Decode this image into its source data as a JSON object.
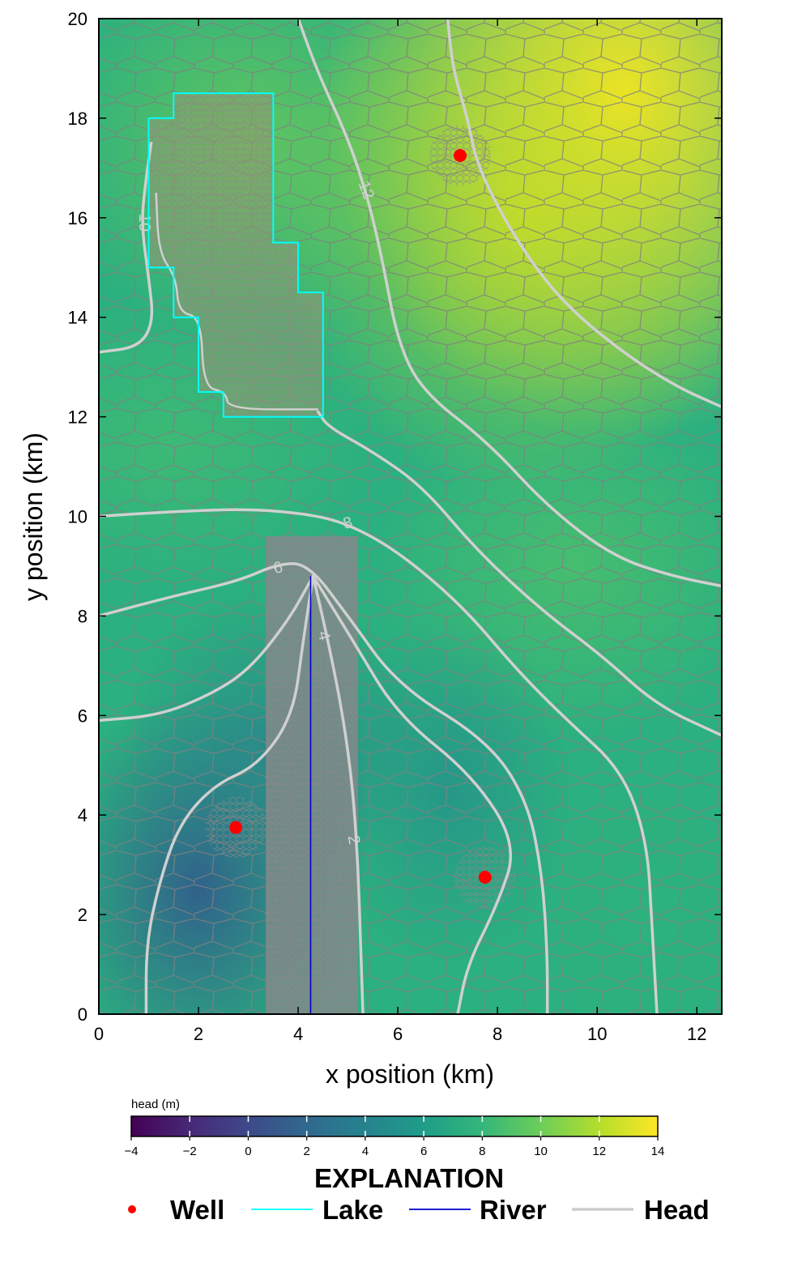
{
  "chart_data": {
    "type": "heatmap",
    "xlabel": "x position (km)",
    "ylabel": "y position (km)",
    "xlim": [
      0,
      12.5
    ],
    "ylim": [
      0,
      20
    ],
    "xticks": [
      0,
      2,
      4,
      6,
      8,
      10,
      12
    ],
    "yticks": [
      0,
      2,
      4,
      6,
      8,
      10,
      12,
      14,
      16,
      18,
      20
    ],
    "colorbar": {
      "title": "head (m)",
      "range": [
        -4,
        14
      ],
      "ticks": [
        -4,
        -2,
        0,
        2,
        4,
        6,
        8,
        10,
        12,
        14
      ],
      "tick_labels": [
        "−4",
        "−2",
        "0",
        "2",
        "4",
        "6",
        "8",
        "10",
        "12",
        "14"
      ],
      "colormap": "viridis"
    },
    "wells": [
      {
        "x": 7.25,
        "y": 17.25
      },
      {
        "x": 2.75,
        "y": 3.75
      },
      {
        "x": 7.75,
        "y": 2.75
      }
    ],
    "lake_boundary": [
      [
        1.0,
        18.0
      ],
      [
        1.5,
        18.0
      ],
      [
        1.5,
        18.5
      ],
      [
        3.5,
        18.5
      ],
      [
        3.5,
        15.5
      ],
      [
        4.0,
        15.5
      ],
      [
        4.0,
        14.5
      ],
      [
        4.5,
        14.5
      ],
      [
        4.5,
        12.0
      ],
      [
        2.5,
        12.0
      ],
      [
        2.5,
        12.5
      ],
      [
        2.0,
        12.5
      ],
      [
        2.0,
        14.0
      ],
      [
        1.5,
        14.0
      ],
      [
        1.5,
        15.0
      ],
      [
        1.0,
        15.0
      ],
      [
        1.0,
        18.0
      ]
    ],
    "river": [
      [
        4.25,
        0
      ],
      [
        4.25,
        8.8
      ]
    ],
    "contours": [
      {
        "level": "2",
        "label_pos": [
          5.1,
          3.5
        ],
        "label_angle": 80
      },
      {
        "level": "4",
        "label_pos": [
          4.5,
          7.6
        ],
        "label_angle": 75
      },
      {
        "level": "6",
        "label_pos": [
          3.6,
          8.95
        ],
        "label_angle": -15
      },
      {
        "level": "8",
        "label_pos": [
          5.0,
          9.85
        ],
        "label_angle": -15
      },
      {
        "level": "10",
        "label_pos": [
          0.9,
          15.9
        ],
        "label_angle": 90
      },
      {
        "level": "12",
        "label_pos": [
          5.35,
          16.55
        ],
        "label_angle": 70
      }
    ],
    "legend": {
      "title": "EXPLANATION",
      "placement": "bottom",
      "entries": [
        {
          "label": "Well",
          "color": "#ff0000",
          "style": "marker"
        },
        {
          "label": "Lake",
          "color": "#00ffff",
          "style": "line"
        },
        {
          "label": "River",
          "color": "#0000cc",
          "style": "line"
        },
        {
          "label": "Head",
          "color": "#cccccc",
          "style": "line"
        }
      ]
    },
    "colors": {
      "well": "#ff0000",
      "lake": "#00ffff",
      "river": "#0000cc",
      "head_contour": "#d0d0d0",
      "grid": "#808080"
    }
  }
}
